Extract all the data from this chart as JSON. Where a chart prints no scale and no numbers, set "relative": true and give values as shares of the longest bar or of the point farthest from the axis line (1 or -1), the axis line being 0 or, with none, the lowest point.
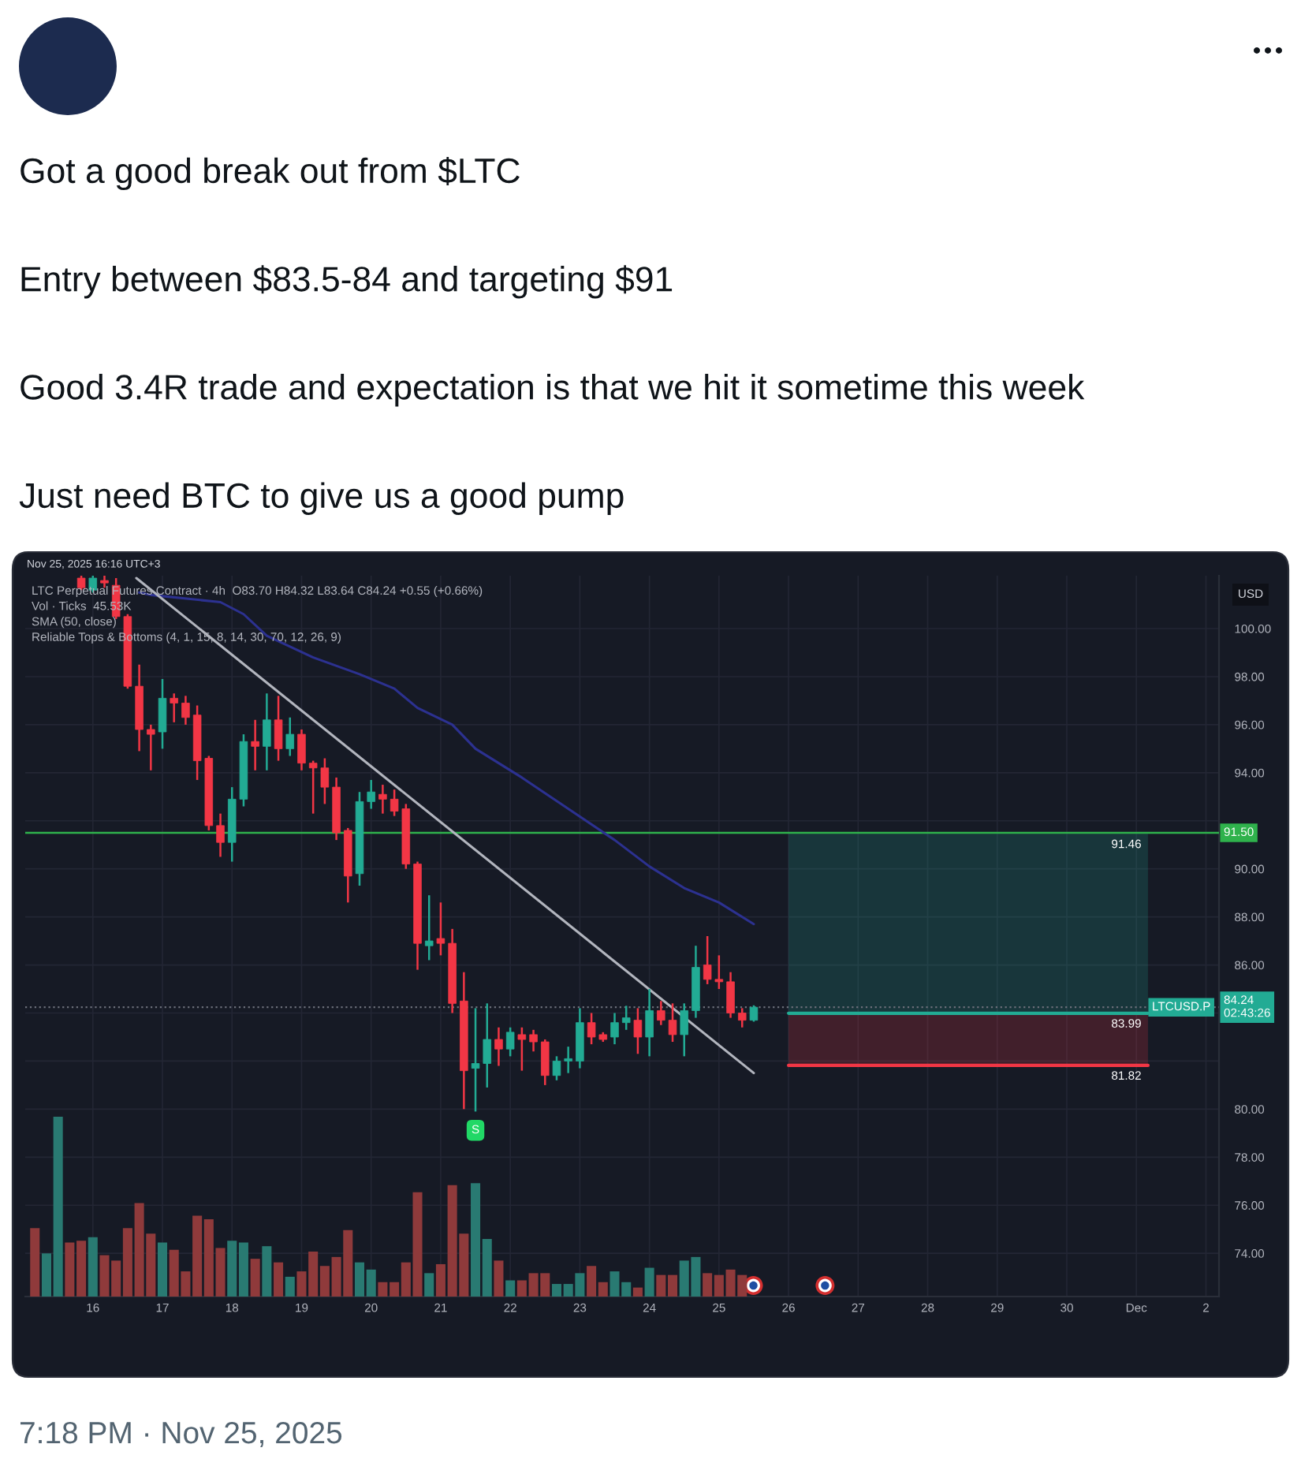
{
  "chart_data": [
    {
      "type": "candlestick",
      "title": "Got a good break out from $LTC\n\nEntry between $83.5-84 and targeting $91\n\nGood 3.4R trade and expectation is that we hit it sometime this week\n\nJust need BTC to give us a good pump",
      "subtitle": "Nov 25, 2025 16:16 UTC+3",
      "ylabel": "USD",
      "x": [
        "2025-11-15T20:00",
        "2025-11-16T00:00",
        "2025-11-16T04:00",
        "2025-11-16T08:00",
        "2025-11-16T12:00",
        "2025-11-16T16:00",
        "2025-11-16T20:00",
        "2025-11-17T00:00",
        "2025-11-17T04:00",
        "2025-11-17T08:00",
        "2025-11-17T12:00",
        "2025-11-17T16:00",
        "2025-11-17T20:00",
        "2025-11-18T00:00",
        "2025-11-18T04:00",
        "2025-11-18T08:00",
        "2025-11-18T12:00",
        "2025-11-18T16:00",
        "2025-11-18T20:00",
        "2025-11-19T00:00",
        "2025-11-19T04:00",
        "2025-11-19T08:00",
        "2025-11-19T12:00",
        "2025-11-19T16:00",
        "2025-11-19T20:00",
        "2025-11-20T00:00",
        "2025-11-20T04:00",
        "2025-11-20T08:00",
        "2025-11-20T12:00",
        "2025-11-20T16:00",
        "2025-11-20T20:00",
        "2025-11-21T00:00",
        "2025-11-21T04:00",
        "2025-11-21T08:00",
        "2025-11-21T12:00",
        "2025-11-21T16:00",
        "2025-11-21T20:00",
        "2025-11-22T00:00",
        "2025-11-22T04:00",
        "2025-11-22T08:00",
        "2025-11-22T12:00",
        "2025-11-22T16:00",
        "2025-11-22T20:00",
        "2025-11-23T00:00",
        "2025-11-23T04:00",
        "2025-11-23T08:00",
        "2025-11-23T12:00",
        "2025-11-23T16:00",
        "2025-11-23T20:00",
        "2025-11-24T00:00",
        "2025-11-24T04:00",
        "2025-11-24T08:00",
        "2025-11-24T12:00",
        "2025-11-24T16:00",
        "2025-11-24T20:00",
        "2025-11-25T00:00",
        "2025-11-25T04:00",
        "2025-11-25T08:00",
        "2025-11-25T12:00"
      ],
      "ohlc": [
        [
          102.1,
          102.2,
          101.6,
          101.7
        ],
        [
          101.6,
          102.2,
          101.5,
          102.1
        ],
        [
          102.0,
          102.2,
          101.7,
          101.9
        ],
        [
          101.8,
          102.1,
          100.4,
          100.5
        ],
        [
          100.5,
          100.6,
          97.5,
          97.6
        ],
        [
          97.6,
          98.5,
          94.9,
          95.8
        ],
        [
          95.8,
          96.0,
          94.1,
          95.6
        ],
        [
          95.7,
          97.9,
          95.0,
          97.1
        ],
        [
          97.1,
          97.3,
          96.1,
          96.9
        ],
        [
          96.9,
          97.2,
          96.0,
          96.3
        ],
        [
          96.4,
          96.8,
          93.7,
          94.5
        ],
        [
          94.6,
          94.7,
          91.6,
          91.8
        ],
        [
          91.8,
          92.3,
          90.5,
          91.1
        ],
        [
          91.1,
          93.4,
          90.3,
          92.9
        ],
        [
          92.9,
          95.6,
          92.6,
          95.3
        ],
        [
          95.3,
          96.2,
          94.1,
          95.1
        ],
        [
          95.1,
          97.3,
          94.1,
          96.2
        ],
        [
          96.2,
          97.2,
          94.5,
          95.0
        ],
        [
          95.0,
          96.3,
          94.7,
          95.6
        ],
        [
          95.6,
          95.8,
          94.1,
          94.4
        ],
        [
          94.4,
          94.5,
          92.3,
          94.2
        ],
        [
          94.2,
          94.6,
          92.7,
          93.4
        ],
        [
          93.4,
          93.8,
          91.2,
          91.5
        ],
        [
          91.6,
          91.7,
          88.6,
          89.7
        ],
        [
          89.8,
          93.2,
          89.3,
          92.8
        ],
        [
          92.8,
          93.7,
          92.5,
          93.2
        ],
        [
          93.1,
          93.5,
          92.3,
          92.9
        ],
        [
          92.9,
          93.3,
          92.2,
          92.4
        ],
        [
          92.5,
          92.7,
          90.0,
          90.2
        ],
        [
          90.2,
          90.3,
          85.8,
          86.9
        ],
        [
          86.8,
          88.9,
          86.2,
          87.0
        ],
        [
          87.1,
          88.6,
          86.4,
          86.9
        ],
        [
          86.9,
          87.5,
          84.0,
          84.4
        ],
        [
          84.5,
          85.7,
          80.0,
          81.6
        ],
        [
          81.7,
          84.2,
          79.9,
          81.9
        ],
        [
          81.9,
          84.4,
          80.9,
          82.9
        ],
        [
          82.9,
          83.4,
          81.8,
          82.5
        ],
        [
          82.5,
          83.4,
          82.2,
          83.2
        ],
        [
          83.1,
          83.4,
          81.6,
          82.9
        ],
        [
          83.1,
          83.3,
          82.4,
          82.8
        ],
        [
          82.8,
          82.9,
          81.0,
          81.4
        ],
        [
          81.4,
          82.2,
          81.2,
          82.0
        ],
        [
          82.0,
          82.6,
          81.5,
          82.1
        ],
        [
          82.0,
          84.2,
          81.7,
          83.6
        ],
        [
          83.6,
          84.0,
          82.7,
          83.0
        ],
        [
          83.1,
          83.2,
          82.8,
          82.9
        ],
        [
          83.0,
          84.0,
          82.7,
          83.6
        ],
        [
          83.6,
          84.3,
          83.3,
          83.8
        ],
        [
          83.7,
          84.2,
          82.3,
          83.0
        ],
        [
          83.0,
          85.0,
          82.2,
          84.1
        ],
        [
          84.1,
          84.5,
          83.5,
          83.7
        ],
        [
          83.7,
          84.4,
          82.8,
          83.1
        ],
        [
          83.1,
          84.4,
          82.2,
          84.1
        ],
        [
          84.1,
          86.8,
          83.8,
          85.9
        ],
        [
          86.0,
          87.2,
          85.2,
          85.4
        ],
        [
          85.4,
          86.4,
          85.0,
          85.3
        ],
        [
          85.3,
          85.7,
          83.8,
          84.0
        ],
        [
          84.0,
          84.2,
          83.4,
          83.7
        ],
        [
          83.7,
          84.32,
          83.64,
          84.24
        ]
      ],
      "colors": [
        "#f23645",
        "#22ab94",
        "#f23645",
        "#f23645",
        "#f23645",
        "#f23645",
        "#f23645",
        "#22ab94",
        "#f23645",
        "#f23645",
        "#f23645",
        "#f23645",
        "#f23645",
        "#22ab94",
        "#22ab94",
        "#f23645",
        "#22ab94",
        "#f23645",
        "#22ab94",
        "#f23645",
        "#f23645",
        "#f23645",
        "#f23645",
        "#f23645",
        "#22ab94",
        "#22ab94",
        "#f23645",
        "#f23645",
        "#f23645",
        "#f23645",
        "#22ab94",
        "#f23645",
        "#f23645",
        "#f23645",
        "#22ab94",
        "#22ab94",
        "#f23645",
        "#22ab94",
        "#f23645",
        "#f23645",
        "#f23645",
        "#22ab94",
        "#22ab94",
        "#22ab94",
        "#f23645",
        "#f23645",
        "#22ab94",
        "#22ab94",
        "#f23645",
        "#22ab94",
        "#f23645",
        "#f23645",
        "#22ab94",
        "#22ab94",
        "#f23645",
        "#f23645",
        "#f23645",
        "#f23645",
        "#22ab94"
      ],
      "series": [
        {
          "type": "line",
          "color": "#2c3190",
          "x": [
            "2025-11-16T16:00",
            "2025-11-16T20:00",
            "2025-11-17T20:00",
            "2025-11-18T04:00",
            "2025-11-18T12:00",
            "2025-11-19T04:00",
            "2025-11-19T20:00",
            "2025-11-20T08:00",
            "2025-11-20T16:00",
            "2025-11-21T04:00",
            "2025-11-21T12:00",
            "2025-11-22T04:00",
            "2025-11-22T20:00",
            "2025-11-23T12:00",
            "2025-11-24T00:00",
            "2025-11-24T12:00",
            "2025-11-25T00:00",
            "2025-11-25T12:00"
          ],
          "values": [
            101.5,
            101.4,
            101.1,
            100.6,
            99.7,
            98.8,
            98.1,
            97.5,
            96.7,
            96.0,
            95.0,
            93.8,
            92.5,
            91.2,
            90.1,
            89.2,
            88.6,
            87.7
          ]
        },
        {
          "type": "line",
          "color": "#b2b5be",
          "x": [
            "2025-11-16T15:00",
            "2025-11-25T12:00"
          ],
          "values": [
            102.1,
            81.5
          ]
        },
        {
          "type": "line",
          "color": "#f23645",
          "x": [
            "2025-11-26T00:00",
            "2025-12-01T04:00"
          ],
          "values": [
            81.82,
            81.82
          ],
          "lower": [
            81.82,
            81.82
          ],
          "upper": [
            83.99,
            83.99
          ],
          "value_labels": [
            null,
            "81.82"
          ]
        },
        {
          "type": "line",
          "color": "#22ab94",
          "x": [
            "2025-11-26T00:00",
            "2025-12-01T04:00"
          ],
          "values": [
            83.99,
            83.99
          ],
          "lower": [
            83.99,
            83.99
          ],
          "upper": [
            91.46,
            91.46
          ],
          "value_labels": [
            null,
            "83.99"
          ]
        }
      ],
      "xlim": [
        "2025-11-15T00:40",
        "2025-12-02T04:30"
      ],
      "xticks": [
        {
          "value": "2025-11-16",
          "label": "16"
        },
        {
          "value": "2025-11-17",
          "label": "17"
        },
        {
          "value": "2025-11-18",
          "label": "18"
        },
        {
          "value": "2025-11-19",
          "label": "19"
        },
        {
          "value": "2025-11-20",
          "label": "20"
        },
        {
          "value": "2025-11-21",
          "label": "21"
        },
        {
          "value": "2025-11-22",
          "label": "22"
        },
        {
          "value": "2025-11-23",
          "label": "23"
        },
        {
          "value": "2025-11-24",
          "label": "24"
        },
        {
          "value": "2025-11-25",
          "label": "25"
        },
        {
          "value": "2025-11-26",
          "label": "26"
        },
        {
          "value": "2025-11-27",
          "label": "27"
        },
        {
          "value": "2025-11-28",
          "label": "28"
        },
        {
          "value": "2025-11-29",
          "label": "29"
        },
        {
          "value": "2025-11-30",
          "label": "30"
        },
        {
          "value": "2025-12-01",
          "label": "Dec"
        },
        {
          "value": "2025-12-02",
          "label": "2"
        }
      ],
      "ylim": [
        72.2,
        102.2
      ],
      "yticks": [
        {
          "value": 74,
          "label": "74.00"
        },
        {
          "value": 76,
          "label": "76.00"
        },
        {
          "value": 78,
          "label": "78.00"
        },
        {
          "value": 80,
          "label": "80.00"
        },
        {
          "value": 82,
          "label": null
        },
        {
          "value": 84,
          "label": null
        },
        {
          "value": 86,
          "label": "86.00"
        },
        {
          "value": 88,
          "label": "88.00"
        },
        {
          "value": 90,
          "label": "90.00"
        },
        {
          "value": 92,
          "label": null
        },
        {
          "value": 94,
          "label": "94.00"
        },
        {
          "value": 96,
          "label": "96.00"
        },
        {
          "value": 98,
          "label": "98.00"
        },
        {
          "value": 100,
          "label": "100.00"
        }
      ],
      "grid": true,
      "ref_lines": [
        {
          "axis": "y",
          "value": 91.5,
          "label": "91.50",
          "color": "#2fb24c"
        },
        {
          "axis": "y",
          "value": 84.24,
          "label": "84.24\n02:43:26",
          "color": "#6a6d78",
          "line_style": "dotted"
        }
      ],
      "annotations": [
        "LTC Perpetual Futures Contract · 4h  O83.70 H84.32 L83.64 C84.24 +0.55 (+0.66%)",
        "Vol · Ticks  45.53K",
        "SMA (50, close)",
        "Reliable Tops & Bottoms (4, 1, 15, 8, 14, 30, 70, 12, 26, 9)",
        {
          "text": "S",
          "x": "2025-11-21T12:00",
          "y": 79.9
        },
        {
          "text": "91.46",
          "x": "2025-12-01T04:00",
          "y": 91.46
        },
        {
          "text": "LTCUSD.P",
          "y": 84.24
        },
        "7:18 PM · Nov 25, 2025"
      ]
    },
    {
      "type": "bar",
      "relative": true,
      "x": [
        "2025-11-15T04:00",
        "2025-11-15T08:00",
        "2025-11-15T12:00",
        "2025-11-15T16:00",
        "2025-11-15T20:00",
        "2025-11-16T00:00",
        "2025-11-16T04:00",
        "2025-11-16T08:00",
        "2025-11-16T12:00",
        "2025-11-16T16:00",
        "2025-11-16T20:00",
        "2025-11-17T00:00",
        "2025-11-17T04:00",
        "2025-11-17T08:00",
        "2025-11-17T12:00",
        "2025-11-17T16:00",
        "2025-11-17T20:00",
        "2025-11-18T00:00",
        "2025-11-18T04:00",
        "2025-11-18T08:00",
        "2025-11-18T12:00",
        "2025-11-18T16:00",
        "2025-11-18T20:00",
        "2025-11-19T00:00",
        "2025-11-19T04:00",
        "2025-11-19T08:00",
        "2025-11-19T12:00",
        "2025-11-19T16:00",
        "2025-11-19T20:00",
        "2025-11-20T00:00",
        "2025-11-20T04:00",
        "2025-11-20T08:00",
        "2025-11-20T12:00",
        "2025-11-20T16:00",
        "2025-11-20T20:00",
        "2025-11-21T00:00",
        "2025-11-21T04:00",
        "2025-11-21T08:00",
        "2025-11-21T12:00",
        "2025-11-21T16:00",
        "2025-11-21T20:00",
        "2025-11-22T00:00",
        "2025-11-22T04:00",
        "2025-11-22T08:00",
        "2025-11-22T12:00",
        "2025-11-22T16:00",
        "2025-11-22T20:00",
        "2025-11-23T00:00",
        "2025-11-23T04:00",
        "2025-11-23T08:00",
        "2025-11-23T12:00",
        "2025-11-23T16:00",
        "2025-11-23T20:00",
        "2025-11-24T00:00",
        "2025-11-24T04:00",
        "2025-11-24T08:00",
        "2025-11-24T12:00",
        "2025-11-24T16:00",
        "2025-11-24T20:00",
        "2025-11-25T00:00",
        "2025-11-25T04:00",
        "2025-11-25T08:00"
      ],
      "values": [
        0.38,
        0.24,
        1,
        0.3,
        0.31,
        0.33,
        0.23,
        0.2,
        0.38,
        0.52,
        0.35,
        0.3,
        0.26,
        0.14,
        0.45,
        0.43,
        0.27,
        0.31,
        0.3,
        0.21,
        0.28,
        0.19,
        0.11,
        0.14,
        0.25,
        0.17,
        0.22,
        0.37,
        0.19,
        0.15,
        0.08,
        0.08,
        0.19,
        0.58,
        0.13,
        0.18,
        0.62,
        0.35,
        0.63,
        0.32,
        0.2,
        0.09,
        0.09,
        0.13,
        0.13,
        0.07,
        0.07,
        0.13,
        0.17,
        0.08,
        0.14,
        0.08,
        0.05,
        0.16,
        0.12,
        0.12,
        0.2,
        0.22,
        0.13,
        0.12,
        0.15,
        0.12
      ],
      "colors": [
        "#8f3a3b",
        "#297a72",
        "#297a72",
        "#8f3a3b",
        "#8f3a3b",
        "#297a72",
        "#8f3a3b",
        "#8f3a3b",
        "#8f3a3b",
        "#8f3a3b",
        "#8f3a3b",
        "#297a72",
        "#8f3a3b",
        "#8f3a3b",
        "#8f3a3b",
        "#8f3a3b",
        "#8f3a3b",
        "#297a72",
        "#297a72",
        "#8f3a3b",
        "#297a72",
        "#8f3a3b",
        "#297a72",
        "#8f3a3b",
        "#8f3a3b",
        "#8f3a3b",
        "#8f3a3b",
        "#8f3a3b",
        "#297a72",
        "#297a72",
        "#8f3a3b",
        "#8f3a3b",
        "#8f3a3b",
        "#8f3a3b",
        "#297a72",
        "#8f3a3b",
        "#8f3a3b",
        "#8f3a3b",
        "#297a72",
        "#297a72",
        "#8f3a3b",
        "#297a72",
        "#8f3a3b",
        "#8f3a3b",
        "#8f3a3b",
        "#297a72",
        "#297a72",
        "#297a72",
        "#8f3a3b",
        "#8f3a3b",
        "#297a72",
        "#297a72",
        "#8f3a3b",
        "#297a72",
        "#8f3a3b",
        "#8f3a3b",
        "#297a72",
        "#297a72",
        "#8f3a3b",
        "#8f3a3b",
        "#8f3a3b",
        "#8f3a3b"
      ],
      "xlim": [
        "2025-11-15T00:40",
        "2025-12-02T04:30"
      ],
      "tick_labels": false
    }
  ]
}
